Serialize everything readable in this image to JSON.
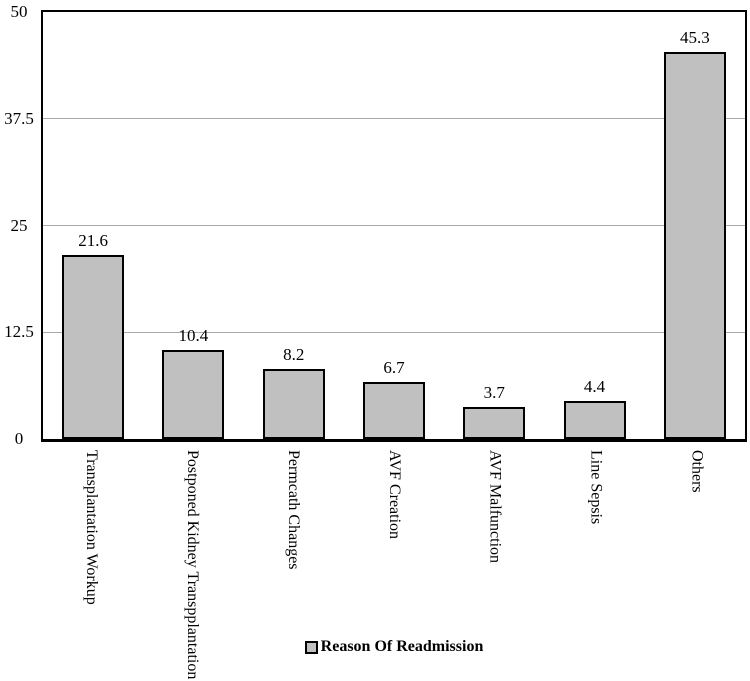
{
  "chart_data": {
    "type": "bar",
    "title": "",
    "xlabel": "",
    "ylabel": "",
    "categories": [
      "Transplantation Workup",
      "Postponed Kidney Transpplantation",
      "Permcath Changes",
      "AVF Creation",
      "AVF Malfunction",
      "Line Sepsis",
      "Others"
    ],
    "values": [
      21.6,
      10.4,
      8.2,
      6.7,
      3.7,
      4.4,
      45.3
    ],
    "value_labels": [
      "21.6",
      "10.4",
      "8.2",
      "6.7",
      "3.7",
      "4.4",
      "45.3"
    ],
    "ylim": [
      0,
      50
    ],
    "y_ticks": [
      {
        "value": 50,
        "label": "50"
      },
      {
        "value": 37.5,
        "label": "37.5"
      },
      {
        "value": 25,
        "label": "25"
      },
      {
        "value": 12.5,
        "label": "12.5"
      },
      {
        "value": 0,
        "label": "0"
      }
    ],
    "gridline_values": [
      37.5,
      25,
      12.5
    ],
    "grid": true,
    "legend": {
      "label": "Reason Of Readmission",
      "position": "bottom-center",
      "marker": "square-swatch"
    },
    "colors": {
      "bar_fill": "#c0c0c0",
      "bar_border": "#000000",
      "gridline": "#aaaaaa",
      "axis": "#000000",
      "text": "#000000",
      "background": "#ffffff"
    }
  }
}
